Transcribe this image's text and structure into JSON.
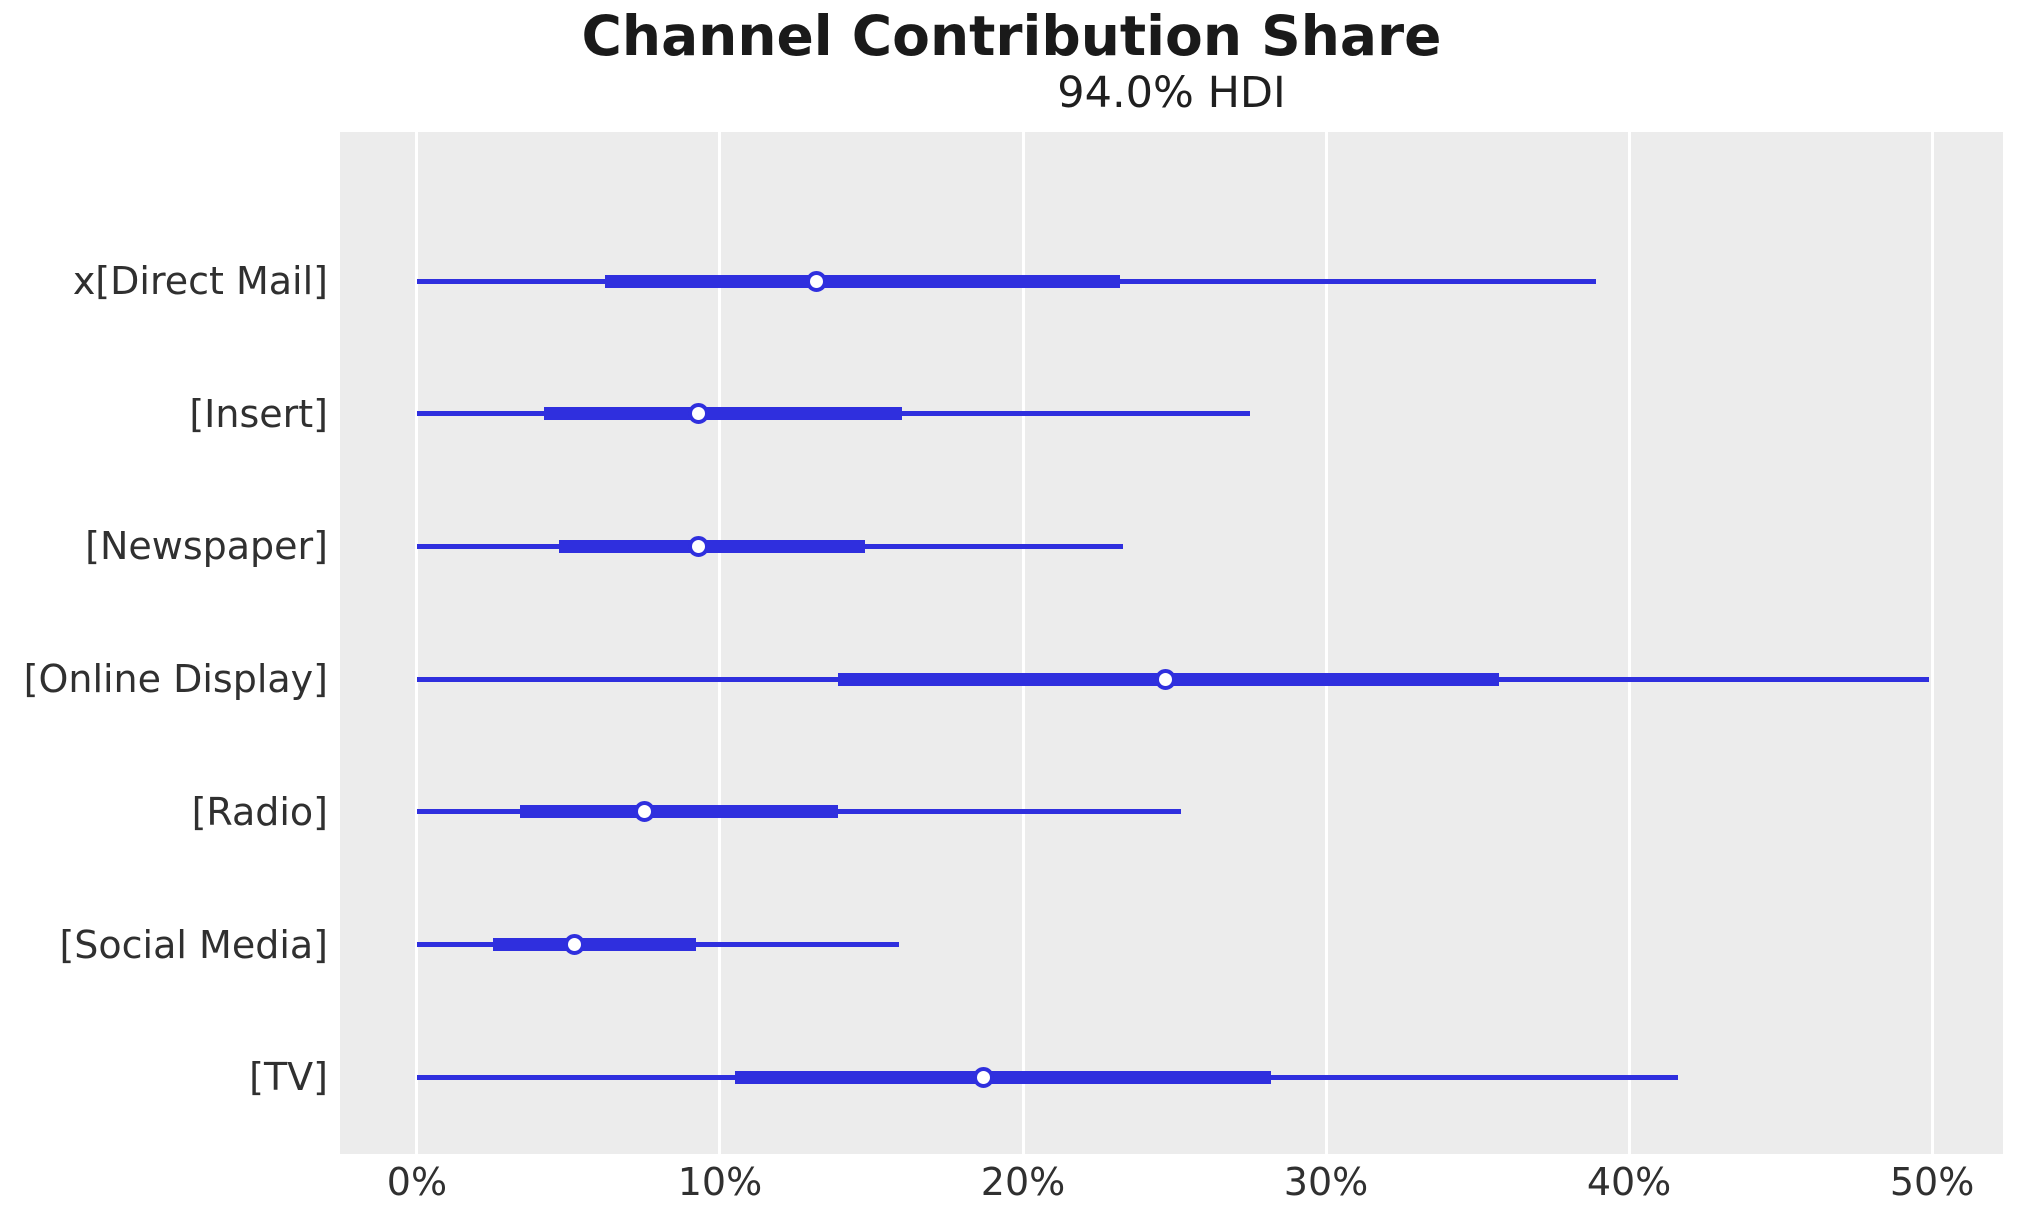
{
  "header": {
    "title": "Channel Contribution Share",
    "subtitle": "94.0% HDI"
  },
  "colors": {
    "line": "#2f2fde",
    "plot_background": "#ececec",
    "gridline": "#ffffff",
    "text": "#303030",
    "title_text": "#1a1a1a"
  },
  "chart_data": {
    "type": "forest",
    "title": "Channel Contribution Share",
    "subtitle": "94.0% HDI",
    "hdi_probability": "94.0%",
    "x_unit": "percent",
    "xlim": [
      -2.54,
      52.34
    ],
    "grid": "on",
    "xticks": [
      {
        "label": "0%",
        "value": 0
      },
      {
        "label": "10%",
        "value": 10
      },
      {
        "label": "20%",
        "value": 20
      },
      {
        "label": "30%",
        "value": 30
      },
      {
        "label": "40%",
        "value": 40
      },
      {
        "label": "50%",
        "value": 50
      }
    ],
    "series": [
      {
        "label": "x[Direct Mail]",
        "hdi_low": 0.0,
        "hdi_high": 38.9,
        "iqr_low": 6.2,
        "iqr_high": 23.2,
        "median": 13.2
      },
      {
        "label": "[Insert]",
        "hdi_low": 0.0,
        "hdi_high": 27.5,
        "iqr_low": 4.2,
        "iqr_high": 16.0,
        "median": 9.3
      },
      {
        "label": "[Newspaper]",
        "hdi_low": 0.0,
        "hdi_high": 23.3,
        "iqr_low": 4.7,
        "iqr_high": 14.8,
        "median": 9.3
      },
      {
        "label": "[Online Display]",
        "hdi_low": 0.0,
        "hdi_high": 49.9,
        "iqr_low": 13.9,
        "iqr_high": 35.7,
        "median": 24.7
      },
      {
        "label": "[Radio]",
        "hdi_low": 0.0,
        "hdi_high": 25.2,
        "iqr_low": 3.4,
        "iqr_high": 13.9,
        "median": 7.5
      },
      {
        "label": "[Social Media]",
        "hdi_low": 0.0,
        "hdi_high": 15.9,
        "iqr_low": 2.5,
        "iqr_high": 9.2,
        "median": 5.2
      },
      {
        "label": "[TV]",
        "hdi_low": 0.0,
        "hdi_high": 41.6,
        "iqr_low": 10.5,
        "iqr_high": 28.2,
        "median": 18.7
      }
    ],
    "row_layout": {
      "first_row_pct": 14.58,
      "row_step_pct": 12.985
    }
  }
}
